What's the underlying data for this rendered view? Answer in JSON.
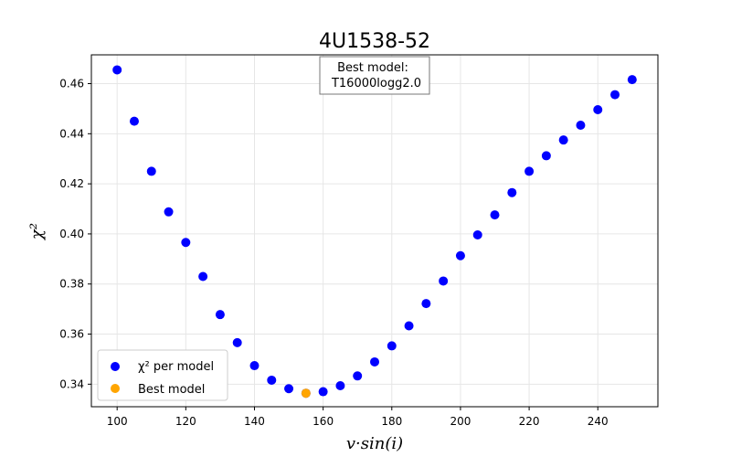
{
  "chart_data": {
    "type": "scatter",
    "title": "4U1538-52",
    "xlabel": "v·sin(i)",
    "ylabel": "χ²",
    "xlim": [
      92.5,
      257.5
    ],
    "ylim": [
      0.331,
      0.4715
    ],
    "xticks": [
      100,
      120,
      140,
      160,
      180,
      200,
      220,
      240
    ],
    "yticks": [
      0.34,
      0.36,
      0.38,
      0.4,
      0.42,
      0.44,
      0.46
    ],
    "grid": true,
    "legend_placement": "lower-left",
    "series": [
      {
        "name": "χ² per model",
        "color": "#0000ff",
        "points": [
          {
            "x": 100,
            "y": 0.4655
          },
          {
            "x": 105,
            "y": 0.445
          },
          {
            "x": 110,
            "y": 0.425
          },
          {
            "x": 115,
            "y": 0.4088
          },
          {
            "x": 120,
            "y": 0.3966
          },
          {
            "x": 125,
            "y": 0.383
          },
          {
            "x": 130,
            "y": 0.3678
          },
          {
            "x": 135,
            "y": 0.3566
          },
          {
            "x": 140,
            "y": 0.3474
          },
          {
            "x": 145,
            "y": 0.3416
          },
          {
            "x": 150,
            "y": 0.3382
          },
          {
            "x": 155,
            "y": 0.3364
          },
          {
            "x": 160,
            "y": 0.337
          },
          {
            "x": 165,
            "y": 0.3394
          },
          {
            "x": 170,
            "y": 0.3433
          },
          {
            "x": 175,
            "y": 0.3489
          },
          {
            "x": 180,
            "y": 0.3553
          },
          {
            "x": 185,
            "y": 0.3633
          },
          {
            "x": 190,
            "y": 0.3722
          },
          {
            "x": 195,
            "y": 0.3812
          },
          {
            "x": 200,
            "y": 0.3913
          },
          {
            "x": 205,
            "y": 0.3996
          },
          {
            "x": 210,
            "y": 0.4076
          },
          {
            "x": 215,
            "y": 0.4165
          },
          {
            "x": 220,
            "y": 0.425
          },
          {
            "x": 225,
            "y": 0.4312
          },
          {
            "x": 230,
            "y": 0.4375
          },
          {
            "x": 235,
            "y": 0.4434
          },
          {
            "x": 240,
            "y": 0.4496
          },
          {
            "x": 245,
            "y": 0.4556
          },
          {
            "x": 250,
            "y": 0.4616
          }
        ]
      },
      {
        "name": "Best model",
        "color": "#ffa500",
        "points": [
          {
            "x": 155,
            "y": 0.3364
          }
        ]
      }
    ],
    "annotation": {
      "line1": "Best model:",
      "line2": "T16000logg2.0"
    }
  }
}
